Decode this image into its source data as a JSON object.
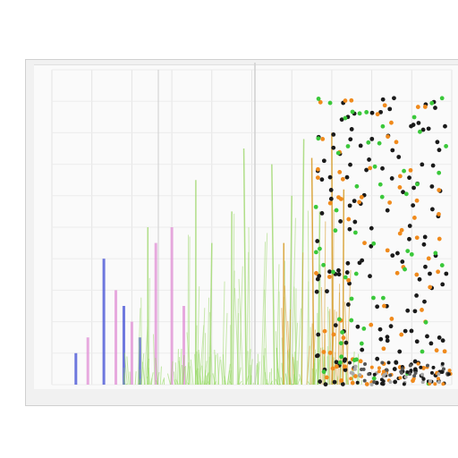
{
  "chart_data": {
    "type": "scatter",
    "title": "",
    "subtitle": "",
    "xlabel": "",
    "ylabel": "",
    "grid": true,
    "xlim": [
      0,
      100
    ],
    "ylim": [
      0,
      100
    ],
    "x_tick_labels": [
      "",
      "",
      "",
      "",
      "",
      "",
      ""
    ],
    "y_tick_labels": [
      "",
      "",
      "",
      "",
      "",
      "",
      "",
      "",
      "",
      "",
      "",
      ""
    ],
    "spike_series": [
      {
        "color": "#5560d8",
        "x": [
          6,
          13,
          18,
          22
        ],
        "values": [
          10,
          40,
          25,
          15
        ]
      },
      {
        "color": "#e39ad8",
        "x": [
          9,
          16,
          20,
          26,
          30,
          33
        ],
        "values": [
          15,
          30,
          20,
          45,
          50,
          25
        ]
      },
      {
        "color": "#a8dc7c",
        "x": [
          24,
          36,
          40,
          45,
          48,
          55,
          60,
          63,
          67
        ],
        "values": [
          50,
          65,
          45,
          55,
          75,
          70,
          60,
          78,
          55
        ]
      },
      {
        "color": "#d8a030",
        "x": [
          58,
          65,
          70,
          73
        ],
        "values": [
          45,
          72,
          80,
          62
        ]
      }
    ],
    "scatter_series": [
      {
        "color": "#1a1a1a"
      },
      {
        "color": "#f08a1c"
      },
      {
        "color": "#3ac83a"
      }
    ],
    "colors": {
      "vertical_marker": "#cfcfcf",
      "frame": "#f1f1f1"
    }
  }
}
